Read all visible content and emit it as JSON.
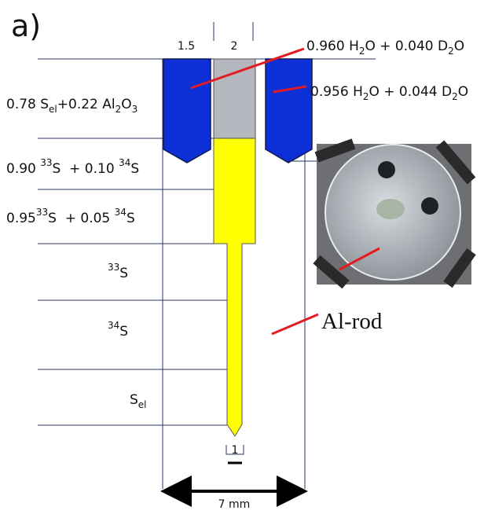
{
  "panel_label": "a)",
  "top_labels": [
    "1.5",
    "2"
  ],
  "water_labels": [
    [
      "0.960 H",
      "2",
      "O + 0.040 D",
      "2",
      "O"
    ],
    [
      "0.956 H",
      "2",
      "O + 0.044 D",
      "2",
      "O"
    ]
  ],
  "layer_labels": [
    [
      "0.78 S",
      "el",
      "+0.22 Al",
      "2",
      "O",
      "3"
    ],
    [
      "0.90 ",
      "33",
      "S  + 0.10 ",
      "34",
      "S"
    ],
    [
      "0.95",
      "33",
      "S  + 0.05 ",
      "34",
      "S"
    ],
    [
      "33",
      "S"
    ],
    [
      "34",
      "S"
    ],
    [
      "S",
      "el"
    ]
  ],
  "rod_label": "Al-rod",
  "tip_label": "1",
  "width_label": "7 mm"
}
